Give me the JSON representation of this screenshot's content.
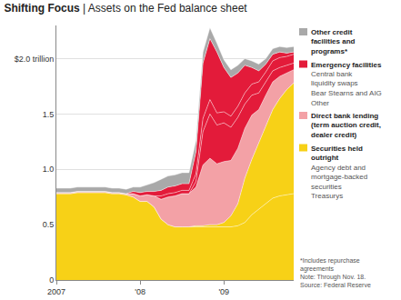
{
  "chart_data": {
    "type": "area",
    "title": "Shifting Focus | Assets on the Fed balance sheet",
    "categories": [
      "2007",
      null,
      null,
      null,
      null,
      null,
      null,
      null,
      null,
      null,
      null,
      null,
      "'08",
      null,
      null,
      null,
      null,
      null,
      null,
      null,
      null,
      null,
      null,
      null,
      "'09",
      null,
      null,
      null,
      null,
      null,
      null,
      null,
      null,
      null,
      null
    ],
    "stacked": true,
    "grid": true,
    "legend": "right",
    "ylim": [
      0,
      2.3
    ],
    "yticks": [
      0,
      0.5,
      {
        "value": 1,
        "label": "1.0"
      },
      1.5,
      {
        "value": 2,
        "label": "$2.0 trillion"
      }
    ],
    "groups": [
      {
        "name": "Emergency facilities",
        "color": "#e31b3a"
      },
      {
        "name": "Securities held outright",
        "color": "#f7d117"
      }
    ],
    "series": [
      {
        "name": "Treasurys",
        "group": "Securities held outright",
        "color": "#f7d117",
        "values": [
          0.78,
          0.78,
          0.78,
          0.79,
          0.79,
          0.79,
          0.79,
          0.79,
          0.78,
          0.78,
          0.77,
          0.75,
          0.71,
          0.71,
          0.66,
          0.55,
          0.5,
          0.48,
          0.48,
          0.48,
          0.48,
          0.48,
          0.48,
          0.48,
          0.48,
          0.48,
          0.49,
          0.52,
          0.59,
          0.64,
          0.69,
          0.74,
          0.76,
          0.77,
          0.78
        ]
      },
      {
        "name": "Agency debt and mortgage-backed securities",
        "group": "Securities held outright",
        "color": "#f7d117",
        "values": [
          0,
          0,
          0,
          0,
          0,
          0,
          0,
          0,
          0,
          0,
          0,
          0,
          0,
          0,
          0,
          0,
          0,
          0,
          0,
          0,
          0.01,
          0.01,
          0.02,
          0.02,
          0.04,
          0.1,
          0.2,
          0.4,
          0.5,
          0.6,
          0.7,
          0.8,
          0.88,
          0.95,
          1.0
        ]
      },
      {
        "name": "Direct bank lending (term auction credit, dealer credit)",
        "color": "#f3a1a6",
        "values": [
          0.01,
          0.01,
          0.01,
          0.01,
          0.01,
          0.01,
          0.01,
          0.01,
          0.01,
          0.01,
          0.01,
          0.03,
          0.05,
          0.06,
          0.1,
          0.18,
          0.25,
          0.28,
          0.3,
          0.3,
          0.35,
          0.55,
          0.6,
          0.55,
          0.55,
          0.5,
          0.5,
          0.45,
          0.4,
          0.3,
          0.28,
          0.25,
          0.2,
          0.15,
          0.12
        ]
      },
      {
        "name": "Other",
        "group": "Emergency facilities",
        "color": "#e31b3a",
        "values": [
          0,
          0,
          0,
          0,
          0,
          0,
          0,
          0,
          0,
          0,
          0,
          0,
          0,
          0,
          0,
          0,
          0,
          0,
          0,
          0,
          0.05,
          0.3,
          0.4,
          0.35,
          0.35,
          0.3,
          0.28,
          0.22,
          0.18,
          0.15,
          0.12,
          0.1,
          0.08,
          0.07,
          0.06
        ]
      },
      {
        "name": "Bear Stearns and AIG",
        "group": "Emergency facilities",
        "color": "#e31b3a",
        "values": [
          0,
          0,
          0,
          0,
          0,
          0,
          0,
          0,
          0,
          0,
          0,
          0,
          0,
          0,
          0,
          0.03,
          0.03,
          0.03,
          0.03,
          0.03,
          0.07,
          0.12,
          0.13,
          0.11,
          0.1,
          0.1,
          0.1,
          0.1,
          0.1,
          0.1,
          0.09,
          0.09,
          0.09,
          0.08,
          0.08
        ]
      },
      {
        "name": "Central bank liquidity swaps",
        "group": "Emergency facilities",
        "color": "#e31b3a",
        "values": [
          0,
          0,
          0,
          0,
          0,
          0,
          0,
          0,
          0,
          0,
          0,
          0.02,
          0.03,
          0.03,
          0.04,
          0.05,
          0.06,
          0.06,
          0.06,
          0.06,
          0.2,
          0.5,
          0.55,
          0.55,
          0.4,
          0.35,
          0.3,
          0.25,
          0.15,
          0.1,
          0.07,
          0.06,
          0.05,
          0.03,
          0.02
        ]
      },
      {
        "name": "Other credit facilities and programs*",
        "color": "#a9a9a9",
        "values": [
          0.04,
          0.04,
          0.04,
          0.04,
          0.04,
          0.04,
          0.04,
          0.04,
          0.04,
          0.04,
          0.04,
          0.04,
          0.05,
          0.06,
          0.08,
          0.1,
          0.1,
          0.1,
          0.1,
          0.1,
          0.1,
          0.1,
          0.1,
          0.08,
          0.07,
          0.07,
          0.07,
          0.06,
          0.06,
          0.06,
          0.05,
          0.05,
          0.05,
          0.05,
          0.05
        ]
      }
    ],
    "notes": [
      "*Includes repurchase agreements",
      "Note: Through Nov. 18.",
      "Source: Federal Reserve"
    ]
  }
}
